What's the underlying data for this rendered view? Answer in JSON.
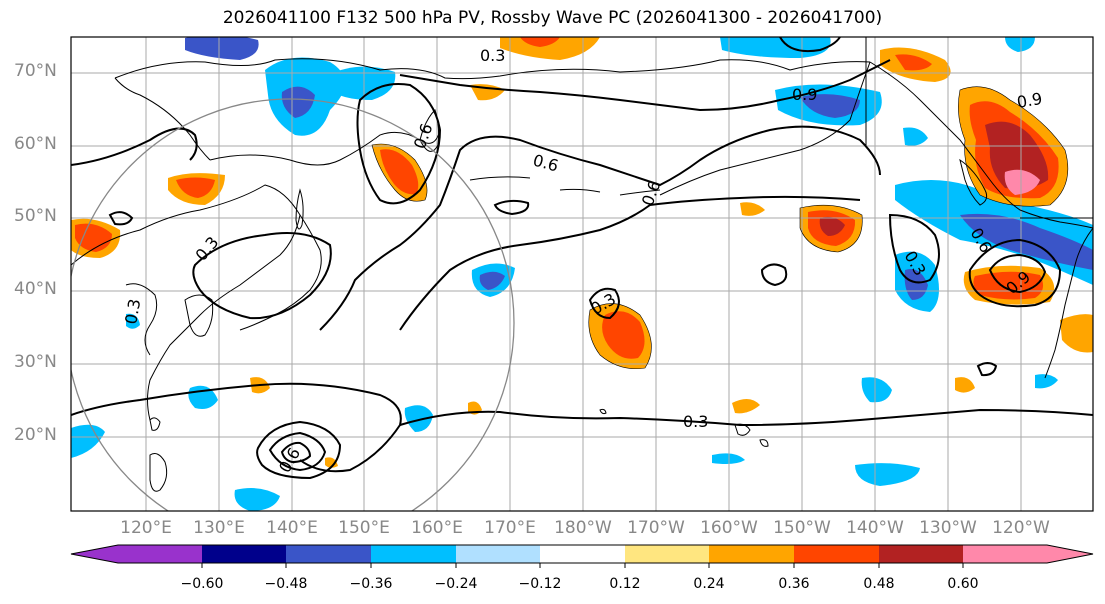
{
  "title": "2026041100 F132 500 hPa PV, Rossby Wave PC (2026041300 - 2026041700)",
  "map": {
    "lat_labels": [
      "70°N",
      "60°N",
      "50°N",
      "40°N",
      "30°N",
      "20°N"
    ],
    "lon_labels": [
      "120°E",
      "130°E",
      "140°E",
      "150°E",
      "160°E",
      "170°E",
      "180°W",
      "170°W",
      "160°W",
      "150°W",
      "140°W",
      "130°W",
      "120°W"
    ],
    "contour_labels": [
      "0.3",
      "0.9",
      "0.6",
      "0.6",
      "0.3",
      "0.3",
      "0.3",
      "0.6",
      "0.3",
      "0.6",
      "0.9",
      "0.3",
      "0.6",
      "0.9"
    ]
  },
  "colorbar": {
    "tick_labels": [
      "−0.60",
      "−0.48",
      "−0.36",
      "−0.24",
      "−0.12",
      "0.12",
      "0.24",
      "0.36",
      "0.48",
      "0.60"
    ],
    "colors": [
      "#9932cc",
      "#00008b",
      "#3a55c8",
      "#00bfff",
      "#b0e0ff",
      "#ffffff",
      "#ffe680",
      "#ffa500",
      "#ff4500",
      "#b22222",
      "#ff88aa"
    ]
  }
}
